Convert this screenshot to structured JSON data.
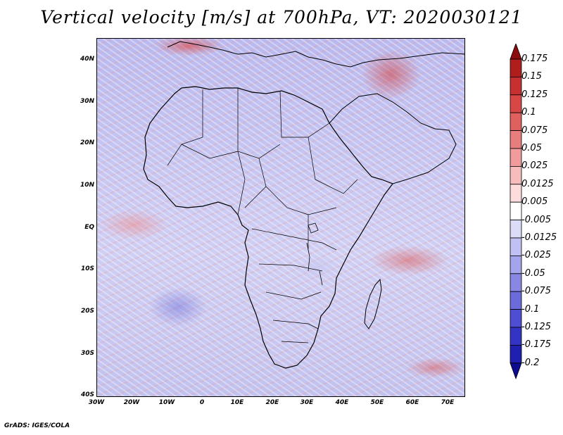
{
  "title": "Vertical velocity [m/s] at 700hPa, VT: 2020030121",
  "footer": "GrADS: IGES/COLA",
  "map": {
    "lat_labels": [
      "40N",
      "30N",
      "20N",
      "10N",
      "EQ",
      "10S",
      "20S",
      "30S",
      "40S"
    ],
    "lon_labels": [
      "30W",
      "20W",
      "10W",
      "0",
      "10E",
      "20E",
      "30E",
      "40E",
      "50E",
      "60E",
      "70E"
    ]
  },
  "colorbar": {
    "labels": [
      "0.175",
      "0.15",
      "0.125",
      "0.1",
      "0.075",
      "0.05",
      "0.025",
      "0.0125",
      "0.005",
      "-0.005",
      "-0.0125",
      "-0.025",
      "-0.05",
      "-0.075",
      "-0.1",
      "-0.125",
      "-0.175",
      "-0.2"
    ],
    "colors": [
      "#8b0d0d",
      "#b01d1d",
      "#c63030",
      "#d84646",
      "#e06060",
      "#e87d7d",
      "#f09c9c",
      "#f7bdbd",
      "#fcdcdc",
      "#ffffff",
      "#dcdcf8",
      "#c0c0f2",
      "#a4a4ec",
      "#8888e4",
      "#6b6bdc",
      "#4e4ed2",
      "#3434c4",
      "#1f1fb0",
      "#0c0c90"
    ]
  }
}
